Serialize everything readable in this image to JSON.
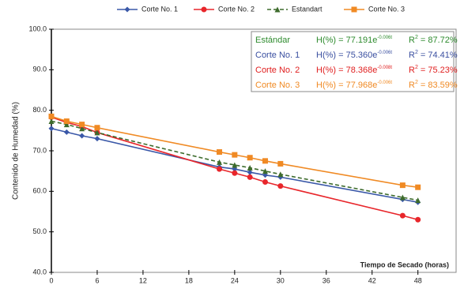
{
  "chart_data": {
    "type": "line",
    "x_label": "Tiempo de Secado (horas)",
    "y_label": "Contenido de Humedad (%)",
    "x": [
      0,
      2,
      4,
      6,
      22,
      24,
      26,
      28,
      30,
      46,
      48
    ],
    "series": [
      {
        "name": "Corte No. 1",
        "color": "#3a58a8",
        "marker": "diamond",
        "dashed": false,
        "values": [
          75.5,
          74.6,
          73.7,
          73.0,
          66.0,
          65.5,
          64.7,
          64.0,
          63.5,
          58.0,
          57.3
        ]
      },
      {
        "name": "Corte No. 2",
        "color": "#e8262b",
        "marker": "circle",
        "dashed": false,
        "values": [
          78.3,
          77.0,
          76.0,
          74.5,
          65.5,
          64.5,
          63.5,
          62.3,
          61.3,
          54.0,
          53.0
        ]
      },
      {
        "name": "Estandart",
        "color": "#3d6b2c",
        "marker": "triangle",
        "dashed": true,
        "values": [
          77.3,
          76.5,
          75.5,
          74.5,
          67.2,
          66.5,
          65.8,
          65.0,
          64.2,
          58.5,
          57.8
        ]
      },
      {
        "name": "Corte No. 3",
        "color": "#f08a24",
        "marker": "square",
        "dashed": false,
        "values": [
          78.5,
          77.3,
          76.5,
          75.7,
          69.7,
          69.0,
          68.3,
          67.5,
          66.8,
          61.5,
          61.0
        ]
      }
    ],
    "xlim": [
      0,
      53
    ],
    "xticks": [
      0,
      6,
      12,
      18,
      24,
      30,
      36,
      42,
      48
    ],
    "ylim": [
      40,
      100
    ],
    "yticks": [
      {
        "value": 40,
        "label": "40.0"
      },
      {
        "value": 50,
        "label": "50.0"
      },
      {
        "value": 60,
        "label": "60.0"
      },
      {
        "value": 70,
        "label": "70.0"
      },
      {
        "value": 80,
        "label": "80.0"
      },
      {
        "value": 90,
        "label": "90.0"
      },
      {
        "value": 100,
        "label": "100.0"
      }
    ],
    "grid": false,
    "annotations": [
      {
        "name": "Estándar",
        "formula": "H(%) = 77.191e",
        "exponent": "-0.006t",
        "r2": "R",
        "r2_sup": "2",
        "r2_value": " = 87.72%",
        "color": "#2e8b2e"
      },
      {
        "name": "Corte No. 1",
        "formula": "H(%) = 75.360e",
        "exponent": "-0.006t",
        "r2": "R",
        "r2_sup": "2",
        "r2_value": " = 74.41%",
        "color": "#3a4fa0"
      },
      {
        "name": "Corte No. 2",
        "formula": "H(%) = 78.368e",
        "exponent": "-0.008t",
        "r2": "R",
        "r2_sup": "2",
        "r2_value": " = 75.23%",
        "color": "#e02020"
      },
      {
        "name": "Corte No. 3",
        "formula": "H(%) = 77.968e",
        "exponent": "-0.006t",
        "r2": "R",
        "r2_sup": "2",
        "r2_value": " = 83.59%",
        "color": "#f08a24"
      }
    ]
  }
}
